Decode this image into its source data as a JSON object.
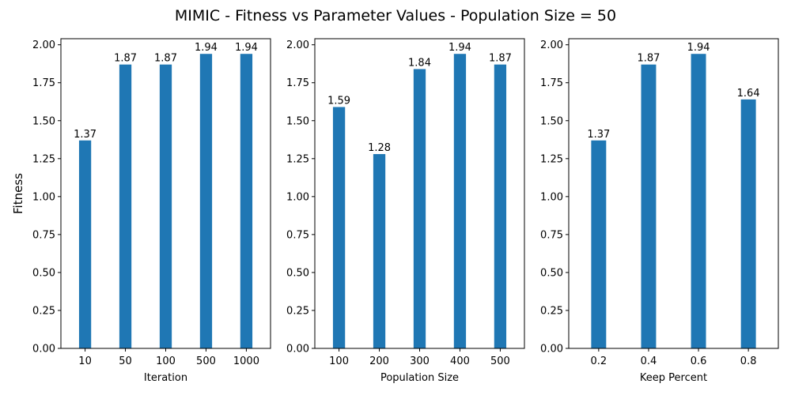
{
  "figure": {
    "suptitle": "MIMIC - Fitness vs Parameter Values - Population Size = 50",
    "bar_color": "#1f77b4"
  },
  "chart_data": [
    {
      "type": "bar",
      "categories": [
        "10",
        "50",
        "100",
        "500",
        "1000"
      ],
      "values": [
        1.37,
        1.87,
        1.87,
        1.94,
        1.94
      ],
      "data_labels": [
        "1.37",
        "1.87",
        "1.87",
        "1.94",
        "1.94"
      ],
      "xlabel": "Iteration",
      "ylabel": "Fitness",
      "ylim": [
        0,
        2.04
      ],
      "yticks": [
        "0.00",
        "0.25",
        "0.50",
        "0.75",
        "1.00",
        "1.25",
        "1.50",
        "1.75",
        "2.00"
      ],
      "grid": false
    },
    {
      "type": "bar",
      "categories": [
        "100",
        "200",
        "300",
        "400",
        "500"
      ],
      "values": [
        1.59,
        1.28,
        1.84,
        1.94,
        1.87
      ],
      "data_labels": [
        "1.59",
        "1.28",
        "1.84",
        "1.94",
        "1.87"
      ],
      "xlabel": "Population Size",
      "ylabel": "",
      "ylim": [
        0,
        2.04
      ],
      "yticks": [
        "0.00",
        "0.25",
        "0.50",
        "0.75",
        "1.00",
        "1.25",
        "1.50",
        "1.75",
        "2.00"
      ],
      "grid": false
    },
    {
      "type": "bar",
      "categories": [
        "0.2",
        "0.4",
        "0.6",
        "0.8"
      ],
      "values": [
        1.37,
        1.87,
        1.94,
        1.64
      ],
      "data_labels": [
        "1.37",
        "1.87",
        "1.94",
        "1.64"
      ],
      "xlabel": "Keep Percent",
      "ylabel": "",
      "ylim": [
        0,
        2.04
      ],
      "yticks": [
        "0.00",
        "0.25",
        "0.50",
        "0.75",
        "1.00",
        "1.25",
        "1.50",
        "1.75",
        "2.00"
      ],
      "grid": false
    }
  ]
}
